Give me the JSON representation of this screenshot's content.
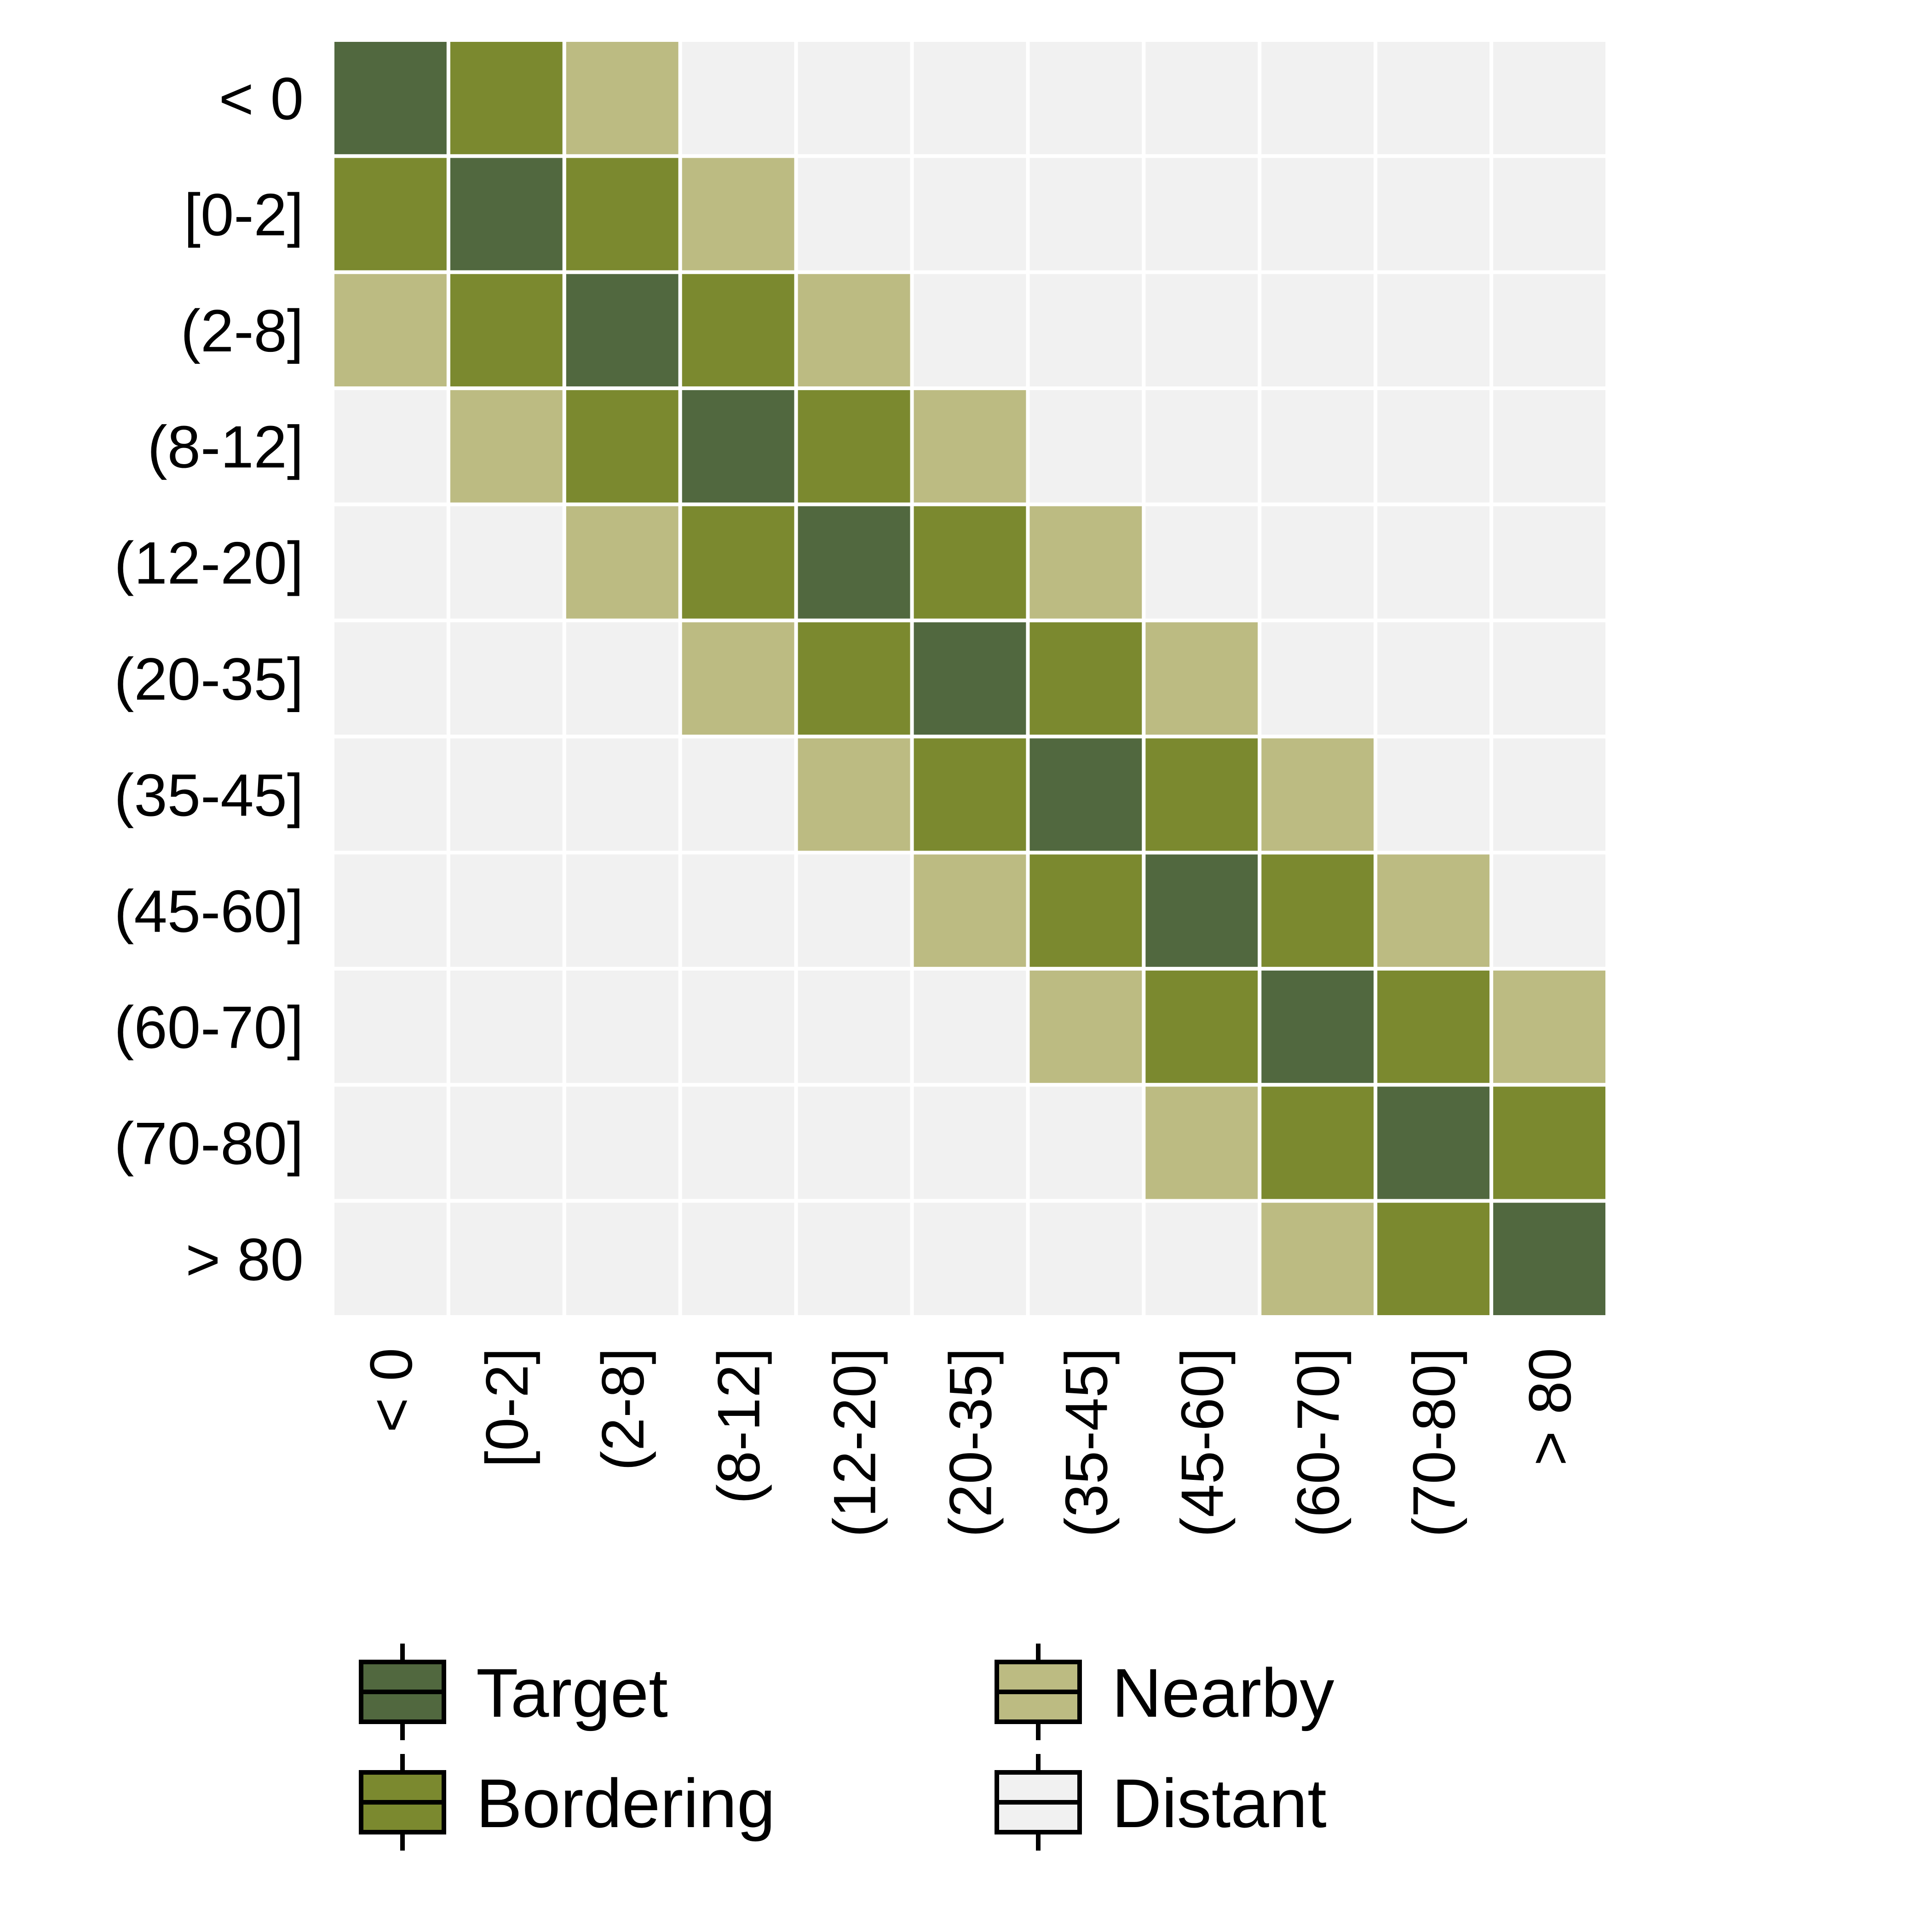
{
  "chart_data": {
    "type": "heatmap",
    "title": "",
    "xlabel": "",
    "ylabel": "",
    "x_categories": [
      "< 0",
      "[0-2]",
      "(2-8]",
      "(8-12]",
      "(12-20]",
      "(20-35]",
      "(35-45]",
      "(45-60]",
      "(60-70]",
      "(70-80]",
      "> 80"
    ],
    "y_categories": [
      "< 0",
      "[0-2]",
      "(2-8]",
      "(8-12]",
      "(12-20]",
      "(20-35]",
      "(35-45]",
      "(45-60]",
      "(60-70]",
      "(70-80]",
      "> 80"
    ],
    "levels": [
      {
        "name": "Target",
        "color": "#51683f"
      },
      {
        "name": "Bordering",
        "color": "#7b892f"
      },
      {
        "name": "Nearby",
        "color": "#bcbb82"
      },
      {
        "name": "Distant",
        "color": "#f1f1f1"
      }
    ],
    "rule": "level depends on distance between row and column category: 0 = Target, 1 = Bordering, 2 = Nearby, 3+ = Distant",
    "matrix": [
      [
        "Target",
        "Bordering",
        "Nearby",
        "Distant",
        "Distant",
        "Distant",
        "Distant",
        "Distant",
        "Distant",
        "Distant",
        "Distant"
      ],
      [
        "Bordering",
        "Target",
        "Bordering",
        "Nearby",
        "Distant",
        "Distant",
        "Distant",
        "Distant",
        "Distant",
        "Distant",
        "Distant"
      ],
      [
        "Nearby",
        "Bordering",
        "Target",
        "Bordering",
        "Nearby",
        "Distant",
        "Distant",
        "Distant",
        "Distant",
        "Distant",
        "Distant"
      ],
      [
        "Distant",
        "Nearby",
        "Bordering",
        "Target",
        "Bordering",
        "Nearby",
        "Distant",
        "Distant",
        "Distant",
        "Distant",
        "Distant"
      ],
      [
        "Distant",
        "Distant",
        "Nearby",
        "Bordering",
        "Target",
        "Bordering",
        "Nearby",
        "Distant",
        "Distant",
        "Distant",
        "Distant"
      ],
      [
        "Distant",
        "Distant",
        "Distant",
        "Nearby",
        "Bordering",
        "Target",
        "Bordering",
        "Nearby",
        "Distant",
        "Distant",
        "Distant"
      ],
      [
        "Distant",
        "Distant",
        "Distant",
        "Distant",
        "Nearby",
        "Bordering",
        "Target",
        "Bordering",
        "Nearby",
        "Distant",
        "Distant"
      ],
      [
        "Distant",
        "Distant",
        "Distant",
        "Distant",
        "Distant",
        "Nearby",
        "Bordering",
        "Target",
        "Bordering",
        "Nearby",
        "Distant"
      ],
      [
        "Distant",
        "Distant",
        "Distant",
        "Distant",
        "Distant",
        "Distant",
        "Nearby",
        "Bordering",
        "Target",
        "Bordering",
        "Nearby"
      ],
      [
        "Distant",
        "Distant",
        "Distant",
        "Distant",
        "Distant",
        "Distant",
        "Distant",
        "Nearby",
        "Bordering",
        "Target",
        "Bordering"
      ],
      [
        "Distant",
        "Distant",
        "Distant",
        "Distant",
        "Distant",
        "Distant",
        "Distant",
        "Distant",
        "Nearby",
        "Bordering",
        "Target"
      ]
    ],
    "legend": {
      "position": "bottom",
      "entries": [
        "Target",
        "Bordering",
        "Nearby",
        "Distant"
      ]
    },
    "grid": false
  }
}
